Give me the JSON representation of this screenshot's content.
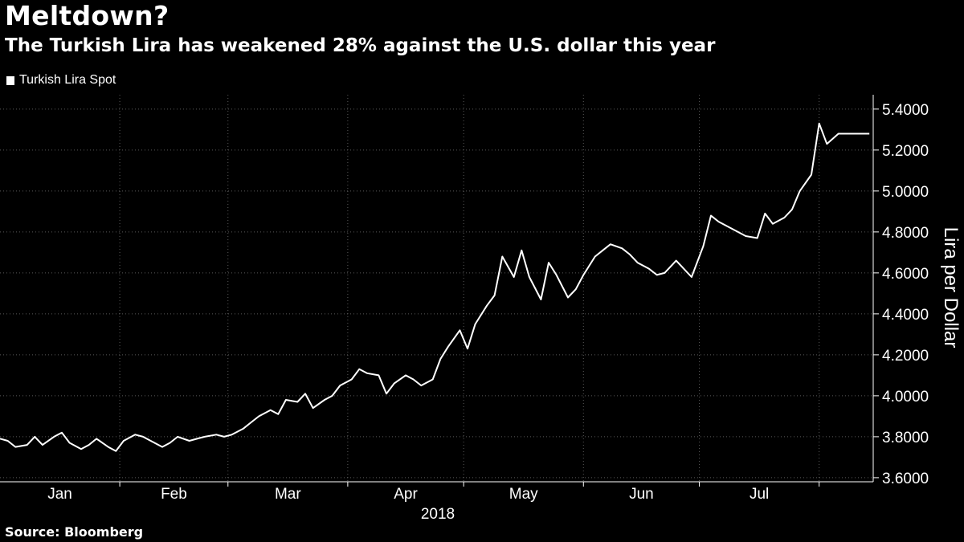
{
  "header": {
    "title": "Meltdown?",
    "subtitle": "The Turkish Lira has weakened 28% against the U.S. dollar this year"
  },
  "source": "Source: Bloomberg",
  "colors": {
    "background": "#000000",
    "line": "#ffffff",
    "grid": "#5a5a5a"
  },
  "chart_data": {
    "type": "line",
    "title": "Meltdown?",
    "subtitle": "The Turkish Lira has weakened 28% against the U.S. dollar this year",
    "ylabel": "Lira per Dollar",
    "year_label": "2018",
    "legend": {
      "placement": "top-left",
      "entries": [
        "Turkish Lira Spot"
      ]
    },
    "grid": "dotted",
    "y_axis": {
      "side": "right",
      "ylim": [
        3.58,
        5.47
      ],
      "ticks": [
        "3.6000",
        "3.8000",
        "4.0000",
        "4.2000",
        "4.4000",
        "4.6000",
        "4.8000",
        "5.0000",
        "5.2000",
        "5.4000"
      ]
    },
    "x_axis": {
      "xlim": [
        "2018-01-01",
        "2018-08-15"
      ],
      "month_labels": [
        "Jan",
        "Feb",
        "Mar",
        "Apr",
        "May",
        "Jun",
        "Jul"
      ]
    },
    "series": [
      {
        "name": "Turkish Lira Spot",
        "x": [
          "2018-01-01",
          "2018-01-03",
          "2018-01-05",
          "2018-01-08",
          "2018-01-10",
          "2018-01-12",
          "2018-01-15",
          "2018-01-17",
          "2018-01-19",
          "2018-01-22",
          "2018-01-24",
          "2018-01-26",
          "2018-01-29",
          "2018-01-31",
          "2018-02-02",
          "2018-02-05",
          "2018-02-07",
          "2018-02-09",
          "2018-02-12",
          "2018-02-14",
          "2018-02-16",
          "2018-02-19",
          "2018-02-21",
          "2018-02-23",
          "2018-02-26",
          "2018-02-28",
          "2018-03-02",
          "2018-03-05",
          "2018-03-07",
          "2018-03-09",
          "2018-03-12",
          "2018-03-14",
          "2018-03-16",
          "2018-03-19",
          "2018-03-21",
          "2018-03-23",
          "2018-03-26",
          "2018-03-28",
          "2018-03-30",
          "2018-04-02",
          "2018-04-04",
          "2018-04-06",
          "2018-04-09",
          "2018-04-11",
          "2018-04-13",
          "2018-04-16",
          "2018-04-18",
          "2018-04-20",
          "2018-04-23",
          "2018-04-25",
          "2018-04-27",
          "2018-04-30",
          "2018-05-02",
          "2018-05-04",
          "2018-05-07",
          "2018-05-09",
          "2018-05-11",
          "2018-05-14",
          "2018-05-16",
          "2018-05-18",
          "2018-05-21",
          "2018-05-23",
          "2018-05-25",
          "2018-05-28",
          "2018-05-30",
          "2018-06-01",
          "2018-06-04",
          "2018-06-06",
          "2018-06-08",
          "2018-06-11",
          "2018-06-13",
          "2018-06-15",
          "2018-06-18",
          "2018-06-20",
          "2018-06-22",
          "2018-06-25",
          "2018-06-27",
          "2018-06-29",
          "2018-07-02",
          "2018-07-04",
          "2018-07-06",
          "2018-07-09",
          "2018-07-11",
          "2018-07-13",
          "2018-07-16",
          "2018-07-18",
          "2018-07-20",
          "2018-07-23",
          "2018-07-25",
          "2018-07-27",
          "2018-07-30",
          "2018-08-01",
          "2018-08-03",
          "2018-08-06",
          "2018-08-08",
          "2018-08-10",
          "2018-08-13",
          "2018-08-14"
        ],
        "values": [
          3.79,
          3.78,
          3.75,
          3.76,
          3.8,
          3.76,
          3.8,
          3.82,
          3.77,
          3.74,
          3.76,
          3.79,
          3.75,
          3.73,
          3.78,
          3.81,
          3.8,
          3.78,
          3.75,
          3.77,
          3.8,
          3.78,
          3.79,
          3.8,
          3.81,
          3.8,
          3.81,
          3.84,
          3.87,
          3.9,
          3.93,
          3.91,
          3.98,
          3.97,
          4.01,
          3.94,
          3.98,
          4.0,
          4.05,
          4.08,
          4.13,
          4.11,
          4.1,
          4.01,
          4.06,
          4.1,
          4.08,
          4.05,
          4.08,
          4.18,
          4.24,
          4.32,
          4.23,
          4.35,
          4.44,
          4.49,
          4.68,
          4.58,
          4.71,
          4.58,
          4.47,
          4.65,
          4.59,
          4.48,
          4.52,
          4.59,
          4.68,
          4.71,
          4.74,
          4.72,
          4.69,
          4.65,
          4.62,
          4.59,
          4.6,
          4.66,
          4.62,
          4.58,
          4.73,
          4.88,
          4.85,
          4.82,
          4.8,
          4.78,
          4.77,
          4.89,
          4.84,
          4.87,
          4.91,
          5.0,
          5.08,
          5.33,
          5.23,
          5.28,
          5.28,
          5.28,
          5.28,
          5.28
        ]
      }
    ]
  }
}
